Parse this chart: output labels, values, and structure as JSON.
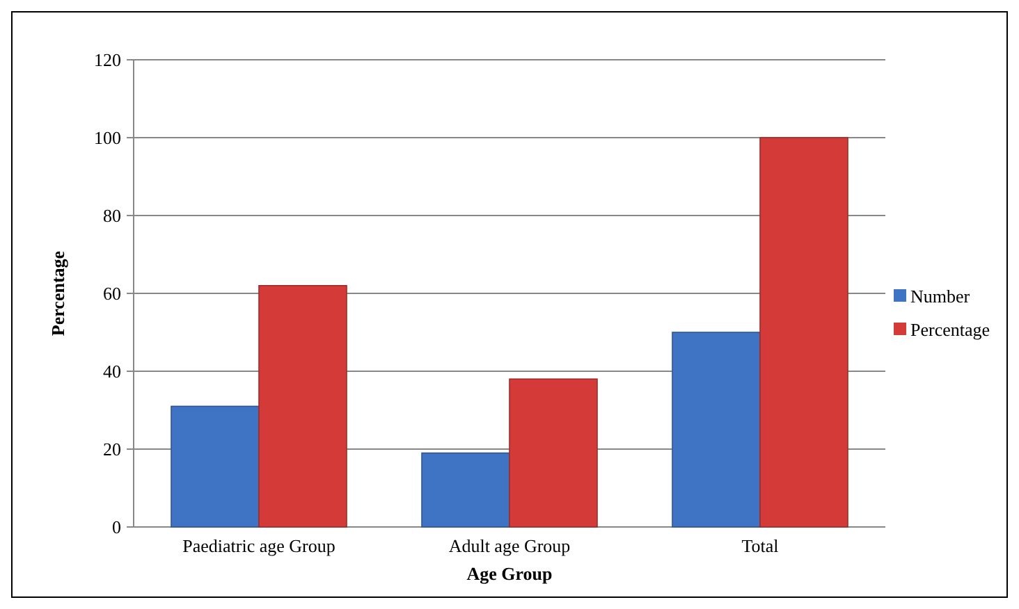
{
  "chart_data": {
    "type": "bar",
    "xlabel": "Age Group",
    "ylabel": "Percentage",
    "categories": [
      "Paediatric age Group",
      "Adult age Group",
      "Total"
    ],
    "series": [
      {
        "name": "Number",
        "color": "#3f73c3",
        "values": [
          31,
          19,
          50
        ]
      },
      {
        "name": "Percentage",
        "color": "#d43b38",
        "values": [
          62,
          38,
          100
        ]
      }
    ],
    "ylim": [
      0,
      120
    ],
    "yticks": [
      0,
      20,
      40,
      60,
      80,
      100,
      120
    ],
    "grid": "y",
    "legend": "right"
  }
}
